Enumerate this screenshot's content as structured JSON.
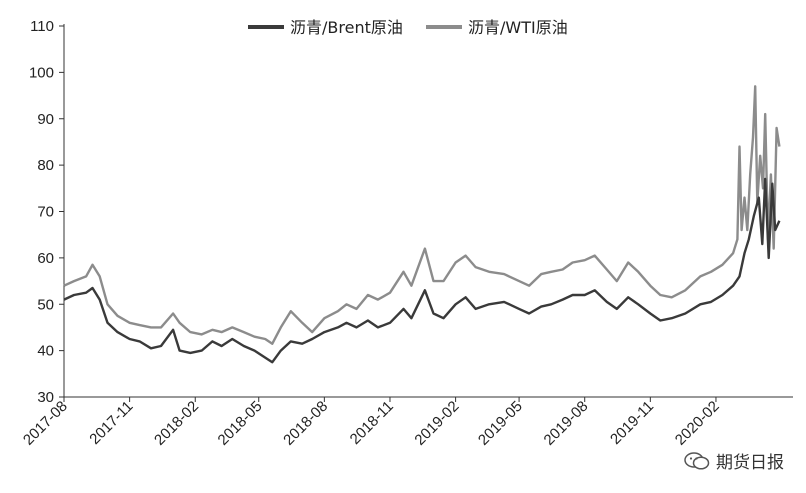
{
  "chart_data": {
    "type": "line",
    "x_axis": {
      "tick_labels": [
        "2017-08",
        "2017-11",
        "2018-02",
        "2018-05",
        "2018-08",
        "2018-11",
        "2019-02",
        "2019-05",
        "2019-08",
        "2019-11",
        "2020-02"
      ]
    },
    "y_axis": {
      "ylim": [
        30,
        110
      ],
      "tick_labels": [
        "30",
        "40",
        "50",
        "60",
        "70",
        "80",
        "90",
        "100",
        "110"
      ]
    },
    "grid": false,
    "legend": {
      "placement": "top-center"
    },
    "x_start": "2017-08-01",
    "series": [
      {
        "name": "沥青/Brent原油",
        "color": "#3a3a3a",
        "points": [
          [
            "2017-08-01",
            51
          ],
          [
            "2017-08-15",
            52
          ],
          [
            "2017-09-01",
            52.5
          ],
          [
            "2017-09-10",
            53.5
          ],
          [
            "2017-09-20",
            51
          ],
          [
            "2017-10-01",
            46
          ],
          [
            "2017-10-15",
            44
          ],
          [
            "2017-11-01",
            42.5
          ],
          [
            "2017-11-15",
            42
          ],
          [
            "2017-12-01",
            40.5
          ],
          [
            "2017-12-15",
            41
          ],
          [
            "2018-01-01",
            44.5
          ],
          [
            "2018-01-10",
            40
          ],
          [
            "2018-01-25",
            39.5
          ],
          [
            "2018-02-10",
            40
          ],
          [
            "2018-02-25",
            42
          ],
          [
            "2018-03-10",
            41
          ],
          [
            "2018-03-25",
            42.5
          ],
          [
            "2018-04-10",
            41
          ],
          [
            "2018-04-25",
            40
          ],
          [
            "2018-05-10",
            38.5
          ],
          [
            "2018-05-20",
            37.5
          ],
          [
            "2018-06-01",
            40
          ],
          [
            "2018-06-15",
            42
          ],
          [
            "2018-07-01",
            41.5
          ],
          [
            "2018-07-15",
            42.5
          ],
          [
            "2018-08-01",
            44
          ],
          [
            "2018-08-20",
            45
          ],
          [
            "2018-09-01",
            46
          ],
          [
            "2018-09-15",
            45
          ],
          [
            "2018-10-01",
            46.5
          ],
          [
            "2018-10-15",
            45
          ],
          [
            "2018-11-01",
            46
          ],
          [
            "2018-11-20",
            49
          ],
          [
            "2018-12-01",
            47
          ],
          [
            "2018-12-20",
            53
          ],
          [
            "2019-01-01",
            48
          ],
          [
            "2019-01-15",
            47
          ],
          [
            "2019-02-01",
            50
          ],
          [
            "2019-02-15",
            51.5
          ],
          [
            "2019-03-01",
            49
          ],
          [
            "2019-03-20",
            50
          ],
          [
            "2019-04-10",
            50.5
          ],
          [
            "2019-05-01",
            49
          ],
          [
            "2019-05-15",
            48
          ],
          [
            "2019-06-01",
            49.5
          ],
          [
            "2019-06-15",
            50
          ],
          [
            "2019-07-01",
            51
          ],
          [
            "2019-07-15",
            52
          ],
          [
            "2019-08-01",
            52
          ],
          [
            "2019-08-15",
            53
          ],
          [
            "2019-09-01",
            50.5
          ],
          [
            "2019-09-15",
            49
          ],
          [
            "2019-10-01",
            51.5
          ],
          [
            "2019-10-15",
            50
          ],
          [
            "2019-11-01",
            48
          ],
          [
            "2019-11-15",
            46.5
          ],
          [
            "2019-12-01",
            47
          ],
          [
            "2019-12-20",
            48
          ],
          [
            "2020-01-10",
            50
          ],
          [
            "2020-01-25",
            50.5
          ],
          [
            "2020-02-10",
            52
          ],
          [
            "2020-02-25",
            54
          ],
          [
            "2020-03-05",
            56
          ],
          [
            "2020-03-12",
            61
          ],
          [
            "2020-03-18",
            64
          ],
          [
            "2020-03-25",
            69
          ],
          [
            "2020-04-01",
            73
          ],
          [
            "2020-04-06",
            63
          ],
          [
            "2020-04-10",
            77
          ],
          [
            "2020-04-15",
            60
          ],
          [
            "2020-04-20",
            76
          ],
          [
            "2020-04-24",
            66
          ],
          [
            "2020-04-30",
            68
          ]
        ]
      },
      {
        "name": "沥青/WTI原油",
        "color": "#8c8c8c",
        "points": [
          [
            "2017-08-01",
            54
          ],
          [
            "2017-08-15",
            55
          ],
          [
            "2017-09-01",
            56
          ],
          [
            "2017-09-10",
            58.5
          ],
          [
            "2017-09-20",
            56
          ],
          [
            "2017-10-01",
            50
          ],
          [
            "2017-10-15",
            47.5
          ],
          [
            "2017-11-01",
            46
          ],
          [
            "2017-11-15",
            45.5
          ],
          [
            "2017-12-01",
            45
          ],
          [
            "2017-12-15",
            45
          ],
          [
            "2018-01-01",
            48
          ],
          [
            "2018-01-10",
            46
          ],
          [
            "2018-01-25",
            44
          ],
          [
            "2018-02-10",
            43.5
          ],
          [
            "2018-02-25",
            44.5
          ],
          [
            "2018-03-10",
            44
          ],
          [
            "2018-03-25",
            45
          ],
          [
            "2018-04-10",
            44
          ],
          [
            "2018-04-25",
            43
          ],
          [
            "2018-05-10",
            42.5
          ],
          [
            "2018-05-20",
            41.5
          ],
          [
            "2018-06-01",
            45
          ],
          [
            "2018-06-15",
            48.5
          ],
          [
            "2018-07-01",
            46
          ],
          [
            "2018-07-15",
            44
          ],
          [
            "2018-08-01",
            47
          ],
          [
            "2018-08-20",
            48.5
          ],
          [
            "2018-09-01",
            50
          ],
          [
            "2018-09-15",
            49
          ],
          [
            "2018-10-01",
            52
          ],
          [
            "2018-10-15",
            51
          ],
          [
            "2018-11-01",
            52.5
          ],
          [
            "2018-11-20",
            57
          ],
          [
            "2018-12-01",
            54
          ],
          [
            "2018-12-20",
            62
          ],
          [
            "2019-01-01",
            55
          ],
          [
            "2019-01-15",
            55
          ],
          [
            "2019-02-01",
            59
          ],
          [
            "2019-02-15",
            60.5
          ],
          [
            "2019-03-01",
            58
          ],
          [
            "2019-03-20",
            57
          ],
          [
            "2019-04-10",
            56.5
          ],
          [
            "2019-05-01",
            55
          ],
          [
            "2019-05-15",
            54
          ],
          [
            "2019-06-01",
            56.5
          ],
          [
            "2019-06-15",
            57
          ],
          [
            "2019-07-01",
            57.5
          ],
          [
            "2019-07-15",
            59
          ],
          [
            "2019-08-01",
            59.5
          ],
          [
            "2019-08-15",
            60.5
          ],
          [
            "2019-09-01",
            57.5
          ],
          [
            "2019-09-15",
            55
          ],
          [
            "2019-10-01",
            59
          ],
          [
            "2019-10-15",
            57
          ],
          [
            "2019-11-01",
            54
          ],
          [
            "2019-11-15",
            52
          ],
          [
            "2019-12-01",
            51.5
          ],
          [
            "2019-12-20",
            53
          ],
          [
            "2020-01-10",
            56
          ],
          [
            "2020-01-25",
            57
          ],
          [
            "2020-02-10",
            58.5
          ],
          [
            "2020-02-25",
            61
          ],
          [
            "2020-03-02",
            64
          ],
          [
            "2020-03-05",
            84
          ],
          [
            "2020-03-08",
            66
          ],
          [
            "2020-03-12",
            73
          ],
          [
            "2020-03-16",
            66
          ],
          [
            "2020-03-20",
            78
          ],
          [
            "2020-03-24",
            86
          ],
          [
            "2020-03-27",
            97
          ],
          [
            "2020-03-30",
            72
          ],
          [
            "2020-04-03",
            82
          ],
          [
            "2020-04-07",
            75
          ],
          [
            "2020-04-10",
            91
          ],
          [
            "2020-04-14",
            64
          ],
          [
            "2020-04-18",
            78
          ],
          [
            "2020-04-22",
            62
          ],
          [
            "2020-04-26",
            88
          ],
          [
            "2020-04-30",
            84
          ]
        ]
      }
    ]
  },
  "watermark": {
    "icon": "wechat-icon",
    "text": "期货日报"
  }
}
